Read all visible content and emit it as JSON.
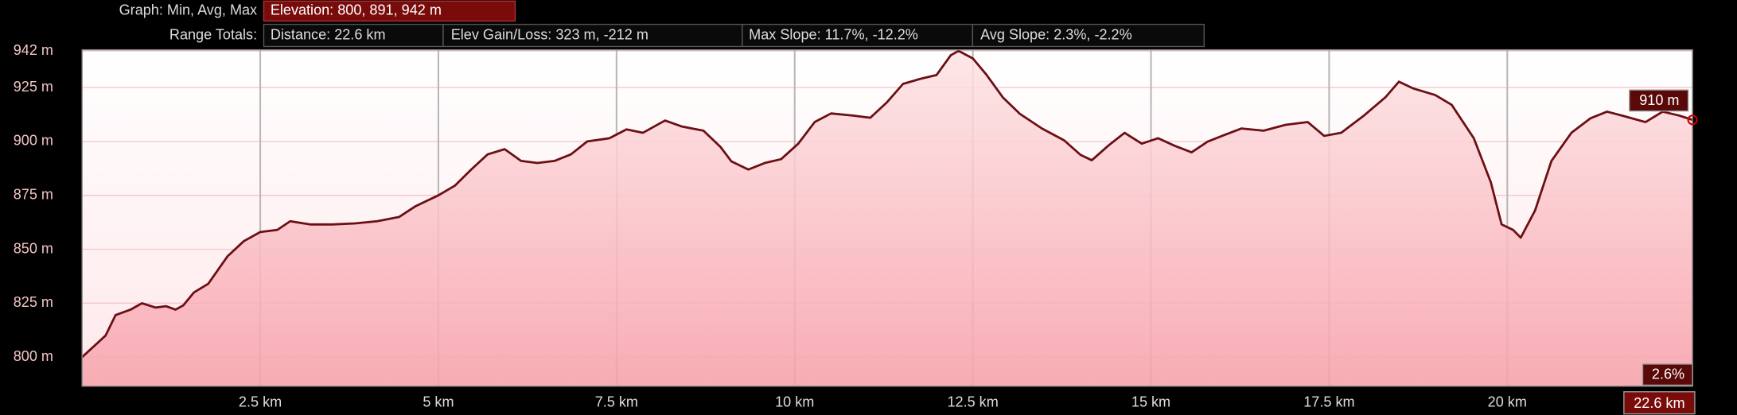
{
  "header": {
    "graph_label": "Graph: Min, Avg, Max",
    "elevation_summary": "Elevation: 800, 891, 942 m",
    "range_label": "Range Totals:",
    "distance": "Distance: 22.6 km",
    "elev_gain_loss": "Elev Gain/Loss: 323 m, -212 m",
    "max_slope": "Max Slope: 11.7%, -12.2%",
    "avg_slope": "Avg Slope: 2.3%, -2.2%"
  },
  "chart_data": {
    "type": "area",
    "color": "#6b0f14",
    "x": [
      0,
      0.33,
      0.47,
      0.68,
      0.84,
      1.03,
      1.18,
      1.31,
      1.42,
      1.57,
      1.77,
      2.04,
      2.27,
      2.5,
      2.74,
      2.92,
      3.2,
      3.51,
      3.83,
      4.14,
      4.45,
      4.68,
      5.0,
      5.23,
      5.46,
      5.69,
      5.93,
      6.16,
      6.39,
      6.63,
      6.86,
      7.09,
      7.4,
      7.64,
      7.87,
      8.18,
      8.41,
      8.72,
      8.96,
      9.11,
      9.35,
      9.58,
      9.81,
      10.05,
      10.28,
      10.51,
      10.82,
      11.06,
      11.29,
      11.52,
      11.76,
      11.99,
      12.19,
      12.3,
      12.5,
      12.69,
      12.92,
      13.16,
      13.47,
      13.78,
      14.01,
      14.17,
      14.4,
      14.63,
      14.87,
      15.1,
      15.33,
      15.57,
      15.8,
      16.03,
      16.27,
      16.58,
      16.89,
      17.2,
      17.43,
      17.67,
      17.98,
      18.29,
      18.48,
      18.68,
      18.99,
      19.22,
      19.53,
      19.77,
      19.92,
      20.08,
      20.19,
      20.39,
      20.62,
      20.9,
      21.17,
      21.4,
      21.63,
      21.94,
      22.18,
      22.41,
      22.6
    ],
    "values": [
      800,
      810,
      819.5,
      822,
      825,
      823,
      823.6,
      822,
      824,
      830,
      834,
      846.7,
      853.8,
      858,
      859,
      863,
      861.5,
      861.5,
      862,
      863,
      865,
      870,
      875,
      879.5,
      887,
      894,
      896.4,
      891,
      890,
      891,
      894,
      900,
      901.5,
      905.6,
      904,
      909.7,
      907,
      905,
      897.4,
      890.8,
      887,
      890,
      891.8,
      899,
      909,
      913,
      912,
      911,
      918,
      926.7,
      929,
      930.8,
      940,
      942,
      938.5,
      931,
      920.5,
      912.8,
      906,
      900.5,
      893.8,
      891.3,
      898,
      904,
      899,
      901.5,
      898,
      895,
      900,
      903,
      906,
      905,
      907.7,
      909,
      902.6,
      904,
      911.8,
      920.5,
      927.7,
      924.6,
      921.5,
      917,
      901.5,
      881,
      861.5,
      859,
      855.4,
      868,
      891,
      904,
      910.8,
      913.8,
      911.8,
      909,
      913.8,
      912,
      910
    ],
    "xlim": [
      0,
      22.6
    ],
    "ylim": [
      786.5,
      942.5
    ],
    "xticks": [
      {
        "value": 2.5,
        "label": "2.5 km"
      },
      {
        "value": 5,
        "label": "5 km"
      },
      {
        "value": 7.5,
        "label": "7.5 km"
      },
      {
        "value": 10,
        "label": "10 km"
      },
      {
        "value": 12.5,
        "label": "12.5 km"
      },
      {
        "value": 15,
        "label": "15 km"
      },
      {
        "value": 17.5,
        "label": "17.5 km"
      },
      {
        "value": 20,
        "label": "20 km"
      }
    ],
    "yticks": [
      {
        "value": 800,
        "label": "800 m"
      },
      {
        "value": 825,
        "label": "825 m"
      },
      {
        "value": 850,
        "label": "850 m"
      },
      {
        "value": 875,
        "label": "875 m"
      },
      {
        "value": 900,
        "label": "900 m"
      },
      {
        "value": 925,
        "label": "925 m"
      },
      {
        "value": 942,
        "label": "942 m"
      }
    ],
    "grid": true,
    "cursor": {
      "x": 22.6,
      "x_label": "22.6 km",
      "y": 910,
      "y_label": "910 m",
      "slope_label": "2.6%"
    }
  }
}
